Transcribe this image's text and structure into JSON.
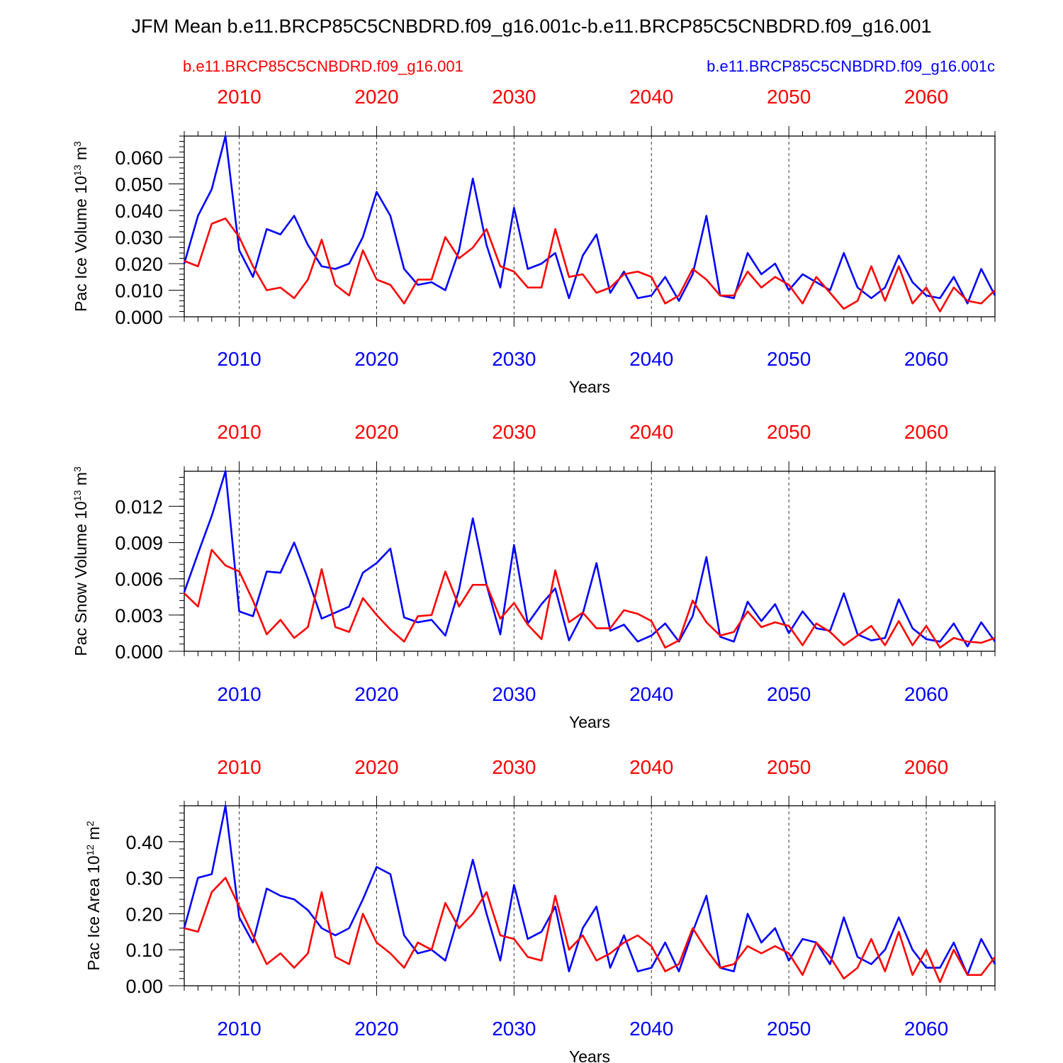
{
  "title": "JFM Mean b.e11.BRCP85C5CNBDRD.f09_g16.001c-b.e11.BRCP85C5CNBDRD.f09_g16.001",
  "legend": {
    "red_label": "b.e11.BRCP85C5CNBDRD.f09_g16.001",
    "blue_label": "b.e11.BRCP85C5CNBDRD.f09_g16.001c"
  },
  "colors": {
    "red": "#ff0000",
    "blue": "#0000ff",
    "axis": "#000000",
    "grid": "#000000"
  },
  "chart_data": [
    {
      "type": "line",
      "ylabel": "Pac Ice Volume 10",
      "ylabel_exp": "13",
      "ylabel_unit": " m",
      "ylabel_unit_exp": "3",
      "xlabel": "Years",
      "xlim": [
        2006,
        2065
      ],
      "ylim": [
        0.0,
        0.068
      ],
      "yticks": [
        0.0,
        0.01,
        0.02,
        0.03,
        0.04,
        0.05,
        0.06
      ],
      "ytick_labels": [
        "0.000",
        "0.010",
        "0.020",
        "0.030",
        "0.040",
        "0.050",
        "0.060"
      ],
      "yminor_step": 0.002,
      "xticks": [
        2010,
        2020,
        2030,
        2040,
        2050,
        2060
      ],
      "xtick_labels": [
        "2010",
        "2020",
        "2030",
        "2040",
        "2050",
        "2060"
      ],
      "x_start": 2006,
      "series": [
        {
          "name": "b.e11.BRCP85C5CNBDRD.f09_g16.001c",
          "color": "blue",
          "values": [
            0.02,
            0.038,
            0.048,
            0.068,
            0.025,
            0.015,
            0.033,
            0.031,
            0.038,
            0.027,
            0.019,
            0.018,
            0.02,
            0.03,
            0.047,
            0.038,
            0.018,
            0.012,
            0.013,
            0.01,
            0.025,
            0.052,
            0.027,
            0.011,
            0.041,
            0.018,
            0.02,
            0.024,
            0.007,
            0.023,
            0.031,
            0.009,
            0.017,
            0.007,
            0.008,
            0.015,
            0.006,
            0.016,
            0.038,
            0.008,
            0.007,
            0.024,
            0.016,
            0.02,
            0.01,
            0.016,
            0.013,
            0.01,
            0.024,
            0.011,
            0.007,
            0.011,
            0.023,
            0.013,
            0.008,
            0.007,
            0.015,
            0.005,
            0.018,
            0.008
          ]
        },
        {
          "name": "b.e11.BRCP85C5CNBDRD.f09_g16.001",
          "color": "red",
          "values": [
            0.021,
            0.019,
            0.035,
            0.037,
            0.03,
            0.019,
            0.01,
            0.011,
            0.007,
            0.014,
            0.029,
            0.012,
            0.008,
            0.025,
            0.014,
            0.012,
            0.005,
            0.014,
            0.014,
            0.03,
            0.022,
            0.026,
            0.033,
            0.019,
            0.017,
            0.011,
            0.011,
            0.033,
            0.015,
            0.016,
            0.009,
            0.011,
            0.016,
            0.017,
            0.015,
            0.005,
            0.008,
            0.018,
            0.014,
            0.008,
            0.008,
            0.017,
            0.011,
            0.015,
            0.012,
            0.005,
            0.015,
            0.009,
            0.003,
            0.006,
            0.019,
            0.006,
            0.019,
            0.005,
            0.011,
            0.002,
            0.011,
            0.006,
            0.005,
            0.01
          ]
        }
      ]
    },
    {
      "type": "line",
      "ylabel": "Pac Snow Volume 10",
      "ylabel_exp": "13",
      "ylabel_unit": " m",
      "ylabel_unit_exp": "3",
      "xlabel": "Years",
      "xlim": [
        2006,
        2065
      ],
      "ylim": [
        0.0,
        0.0149
      ],
      "yticks": [
        0.0,
        0.003,
        0.006,
        0.009,
        0.012
      ],
      "ytick_labels": [
        "0.000",
        "0.003",
        "0.006",
        "0.009",
        "0.012"
      ],
      "yminor_step": 0.0006,
      "xticks": [
        2010,
        2020,
        2030,
        2040,
        2050,
        2060
      ],
      "xtick_labels": [
        "2010",
        "2020",
        "2030",
        "2040",
        "2050",
        "2060"
      ],
      "x_start": 2006,
      "series": [
        {
          "name": "b.e11.BRCP85C5CNBDRD.f09_g16.001c",
          "color": "blue",
          "values": [
            0.0049,
            0.0081,
            0.0112,
            0.0149,
            0.0033,
            0.0029,
            0.0066,
            0.0065,
            0.009,
            0.006,
            0.0027,
            0.0032,
            0.0037,
            0.0065,
            0.0073,
            0.0085,
            0.0028,
            0.0024,
            0.0026,
            0.0013,
            0.0051,
            0.011,
            0.0055,
            0.0014,
            0.0088,
            0.0023,
            0.0039,
            0.0052,
            0.0009,
            0.0031,
            0.0073,
            0.0017,
            0.0022,
            0.0008,
            0.0013,
            0.0023,
            0.0008,
            0.0029,
            0.0078,
            0.0012,
            0.0008,
            0.0041,
            0.0025,
            0.0039,
            0.0015,
            0.0033,
            0.0019,
            0.0017,
            0.0048,
            0.0014,
            0.0009,
            0.0011,
            0.0043,
            0.0019,
            0.001,
            0.0008,
            0.0023,
            0.0004,
            0.0024,
            0.0008
          ]
        },
        {
          "name": "b.e11.BRCP85C5CNBDRD.f09_g16.001",
          "color": "red",
          "values": [
            0.0048,
            0.0037,
            0.0084,
            0.0071,
            0.0066,
            0.0042,
            0.0014,
            0.0026,
            0.0011,
            0.002,
            0.0068,
            0.002,
            0.0016,
            0.0044,
            0.003,
            0.0018,
            0.0008,
            0.0029,
            0.003,
            0.0066,
            0.0037,
            0.0055,
            0.0055,
            0.0027,
            0.004,
            0.0022,
            0.001,
            0.0067,
            0.0024,
            0.0032,
            0.0019,
            0.0019,
            0.0034,
            0.0031,
            0.0025,
            0.0003,
            0.0009,
            0.0042,
            0.0024,
            0.0013,
            0.0016,
            0.0033,
            0.002,
            0.0024,
            0.0021,
            0.0005,
            0.0023,
            0.0016,
            0.0005,
            0.0013,
            0.0021,
            0.0005,
            0.0025,
            0.0005,
            0.0021,
            0.0003,
            0.0011,
            0.0008,
            0.0007,
            0.0011
          ]
        }
      ]
    },
    {
      "type": "line",
      "ylabel": "Pac Ice Area 10",
      "ylabel_exp": "12",
      "ylabel_unit": " m",
      "ylabel_unit_exp": "2",
      "xlabel": "Years",
      "xlim": [
        2006,
        2065
      ],
      "ylim": [
        0.0,
        0.5
      ],
      "yticks": [
        0.0,
        0.1,
        0.2,
        0.3,
        0.4
      ],
      "ytick_labels": [
        "0.00",
        "0.10",
        "0.20",
        "0.30",
        "0.40"
      ],
      "yminor_step": 0.02,
      "xticks": [
        2010,
        2020,
        2030,
        2040,
        2050,
        2060
      ],
      "xtick_labels": [
        "2010",
        "2020",
        "2030",
        "2040",
        "2050",
        "2060"
      ],
      "x_start": 2006,
      "series": [
        {
          "name": "b.e11.BRCP85C5CNBDRD.f09_g16.001c",
          "color": "blue",
          "values": [
            0.16,
            0.3,
            0.31,
            0.5,
            0.19,
            0.12,
            0.27,
            0.25,
            0.24,
            0.21,
            0.16,
            0.14,
            0.16,
            0.24,
            0.33,
            0.31,
            0.14,
            0.09,
            0.1,
            0.07,
            0.2,
            0.35,
            0.2,
            0.07,
            0.28,
            0.13,
            0.15,
            0.22,
            0.04,
            0.16,
            0.22,
            0.05,
            0.14,
            0.04,
            0.05,
            0.12,
            0.04,
            0.15,
            0.25,
            0.05,
            0.04,
            0.2,
            0.12,
            0.16,
            0.07,
            0.13,
            0.12,
            0.06,
            0.19,
            0.08,
            0.06,
            0.1,
            0.19,
            0.1,
            0.05,
            0.05,
            0.12,
            0.03,
            0.13,
            0.06
          ]
        },
        {
          "name": "b.e11.BRCP85C5CNBDRD.f09_g16.001",
          "color": "red",
          "values": [
            0.16,
            0.15,
            0.26,
            0.3,
            0.22,
            0.14,
            0.06,
            0.09,
            0.05,
            0.09,
            0.26,
            0.08,
            0.06,
            0.2,
            0.12,
            0.09,
            0.05,
            0.12,
            0.1,
            0.23,
            0.16,
            0.2,
            0.26,
            0.14,
            0.13,
            0.08,
            0.07,
            0.25,
            0.1,
            0.14,
            0.07,
            0.09,
            0.12,
            0.14,
            0.11,
            0.04,
            0.06,
            0.16,
            0.1,
            0.05,
            0.06,
            0.11,
            0.09,
            0.11,
            0.09,
            0.03,
            0.12,
            0.08,
            0.02,
            0.05,
            0.13,
            0.04,
            0.15,
            0.03,
            0.1,
            0.01,
            0.1,
            0.03,
            0.03,
            0.08
          ]
        }
      ]
    }
  ]
}
